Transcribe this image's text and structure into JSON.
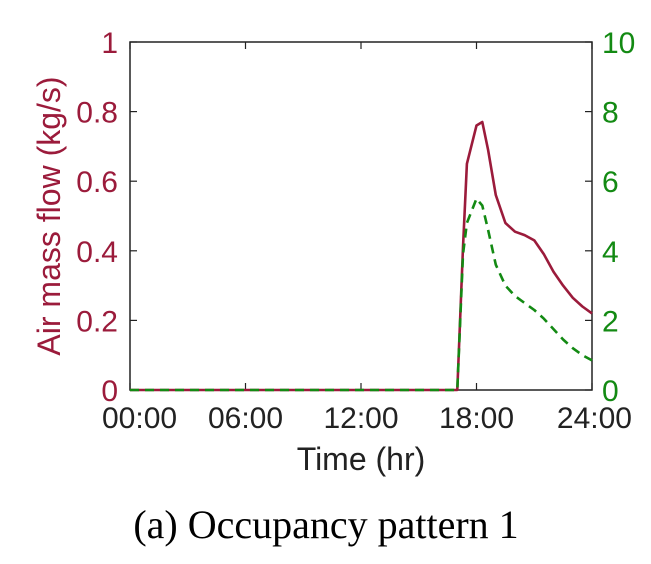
{
  "caption": "(a) Occupancy pattern 1",
  "colors": {
    "left_axis": "#9b1b3b",
    "right_axis": "#138a13",
    "axis_frame": "#222222"
  },
  "chart_data": {
    "type": "line",
    "xlabel": "Time (hr)",
    "ylabel_left": "Air mass flow (kg/s)",
    "ylabel_right": "",
    "xlim": [
      0,
      24
    ],
    "ylim_left": [
      0,
      1
    ],
    "ylim_right": [
      0,
      10
    ],
    "x_ticks": [
      0,
      6,
      12,
      18,
      24
    ],
    "x_tick_labels": [
      "00:00",
      "06:00",
      "12:00",
      "18:00",
      "24:00"
    ],
    "y_left_ticks": [
      0,
      0.2,
      0.4,
      0.6,
      0.8,
      1
    ],
    "y_left_tick_labels": [
      "0",
      "0.2",
      "0.4",
      "0.6",
      "0.8",
      "1"
    ],
    "y_right_ticks": [
      0,
      2,
      4,
      6,
      8,
      10
    ],
    "y_right_tick_labels": [
      "0",
      "2",
      "4",
      "6",
      "8",
      "10"
    ],
    "grid": false,
    "series": [
      {
        "axis": "left",
        "style": "solid",
        "color": "#9b1b3b",
        "x": [
          0,
          17.0,
          17.3,
          17.5,
          18.0,
          18.3,
          18.6,
          19.0,
          19.5,
          20.0,
          20.5,
          21.0,
          21.5,
          22.0,
          22.5,
          23.0,
          23.5,
          24.0
        ],
        "y": [
          0,
          0,
          0.41,
          0.65,
          0.76,
          0.77,
          0.69,
          0.56,
          0.48,
          0.455,
          0.445,
          0.43,
          0.39,
          0.34,
          0.3,
          0.265,
          0.24,
          0.22
        ]
      },
      {
        "axis": "right",
        "style": "dashed",
        "color": "#138a13",
        "x": [
          0,
          17.0,
          17.3,
          17.5,
          18.0,
          18.3,
          18.6,
          19.0,
          19.5,
          20.0,
          20.5,
          21.0,
          21.5,
          22.0,
          22.5,
          23.0,
          23.5,
          24.0
        ],
        "y": [
          0,
          0,
          3.9,
          4.8,
          5.5,
          5.3,
          4.6,
          3.6,
          3.0,
          2.7,
          2.5,
          2.3,
          2.05,
          1.75,
          1.45,
          1.2,
          1.0,
          0.85
        ]
      }
    ]
  }
}
